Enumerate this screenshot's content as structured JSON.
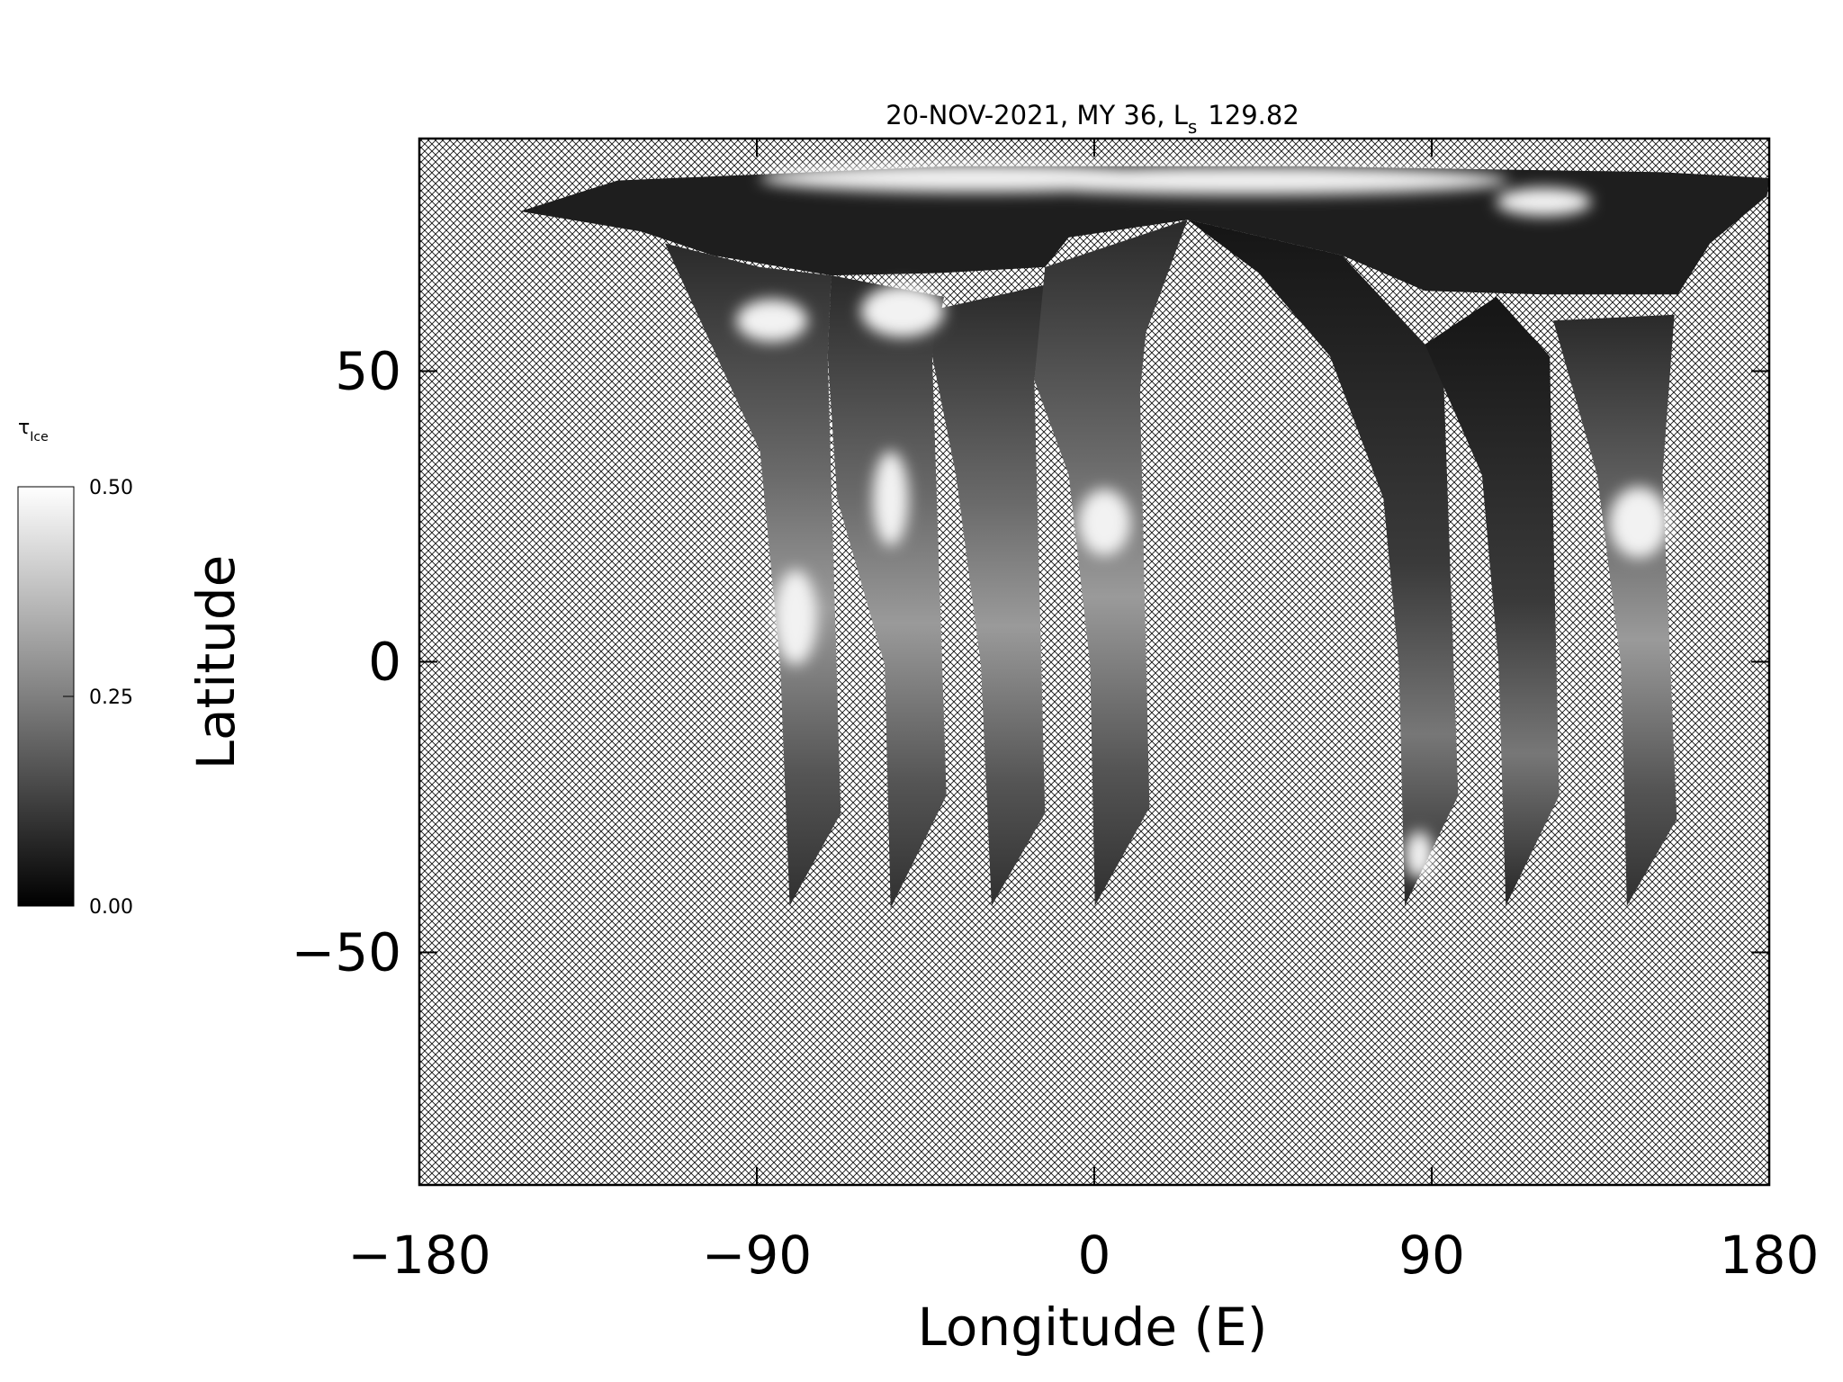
{
  "chart_data": {
    "type": "image-map",
    "title": {
      "text": "20-NOV-2021, MY 36,  L",
      "subscript": "s",
      "suffix": "129.82"
    },
    "xlabel": "Longitude (E)",
    "ylabel": "Latitude",
    "xlim": [
      -180,
      180
    ],
    "xticks": [
      {
        "value": -180,
        "label": "−180"
      },
      {
        "value": -90,
        "label": "−90"
      },
      0,
      90,
      180
    ],
    "ylim": [
      -90,
      90
    ],
    "yticks": [
      {
        "value": -50,
        "label": "−50"
      },
      0,
      50
    ],
    "colorbar": {
      "label": "τ",
      "subscript": "Ice",
      "lim": [
        0,
        0.5
      ],
      "ticks": [
        {
          "value": 0,
          "label": "0.00"
        },
        {
          "value": 0.25,
          "label": "0.25"
        },
        {
          "value": 0.5,
          "label": "0.50"
        }
      ],
      "colors": [
        "#000000",
        "#ffffff"
      ]
    }
  }
}
